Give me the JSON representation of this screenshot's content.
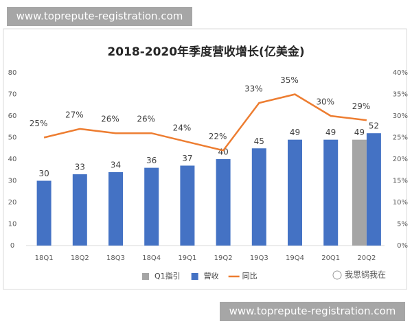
{
  "watermark_top": "www.toprepute-registration.com",
  "watermark_bottom": "www.toprepute-registration.com",
  "logo_text": "我思锅我在",
  "chart_data": {
    "type": "bar",
    "title": "2018-2020年季度营收增长(亿美金)",
    "categories": [
      "18Q1",
      "18Q2",
      "18Q3",
      "18Q4",
      "19Q1",
      "19Q2",
      "19Q3",
      "19Q4",
      "20Q1",
      "20Q2"
    ],
    "series": [
      {
        "name": "Q1指引",
        "type": "bar",
        "color": "#a5a5a5",
        "values": [
          null,
          null,
          null,
          null,
          null,
          null,
          null,
          null,
          null,
          49
        ]
      },
      {
        "name": "营收",
        "type": "bar",
        "color": "#4472c4",
        "values": [
          30,
          33,
          34,
          36,
          37,
          40,
          45,
          49,
          49,
          52
        ]
      },
      {
        "name": "同比",
        "type": "line",
        "axis": "y2",
        "color": "#ed7d31",
        "values": [
          25,
          27,
          26,
          26,
          24,
          22,
          33,
          35,
          30,
          29
        ],
        "value_labels": [
          "25%",
          "27%",
          "26%",
          "26%",
          "24%",
          "22%",
          "33%",
          "35%",
          "30%",
          "29%"
        ]
      }
    ],
    "ylim": [
      0,
      80
    ],
    "yticks": [
      0,
      10,
      20,
      30,
      40,
      50,
      60,
      70,
      80
    ],
    "y2lim": [
      0,
      40
    ],
    "y2ticks": [
      {
        "value": 0,
        "label": "0%"
      },
      {
        "value": 5,
        "label": "5%"
      },
      {
        "value": 10,
        "label": "10%"
      },
      {
        "value": 15,
        "label": "15%"
      },
      {
        "value": 20,
        "label": "20%"
      },
      {
        "value": 25,
        "label": "25%"
      },
      {
        "value": 30,
        "label": "30%"
      },
      {
        "value": 35,
        "label": "35%"
      },
      {
        "value": 40,
        "label": "40%"
      }
    ],
    "legend": "bottom"
  }
}
